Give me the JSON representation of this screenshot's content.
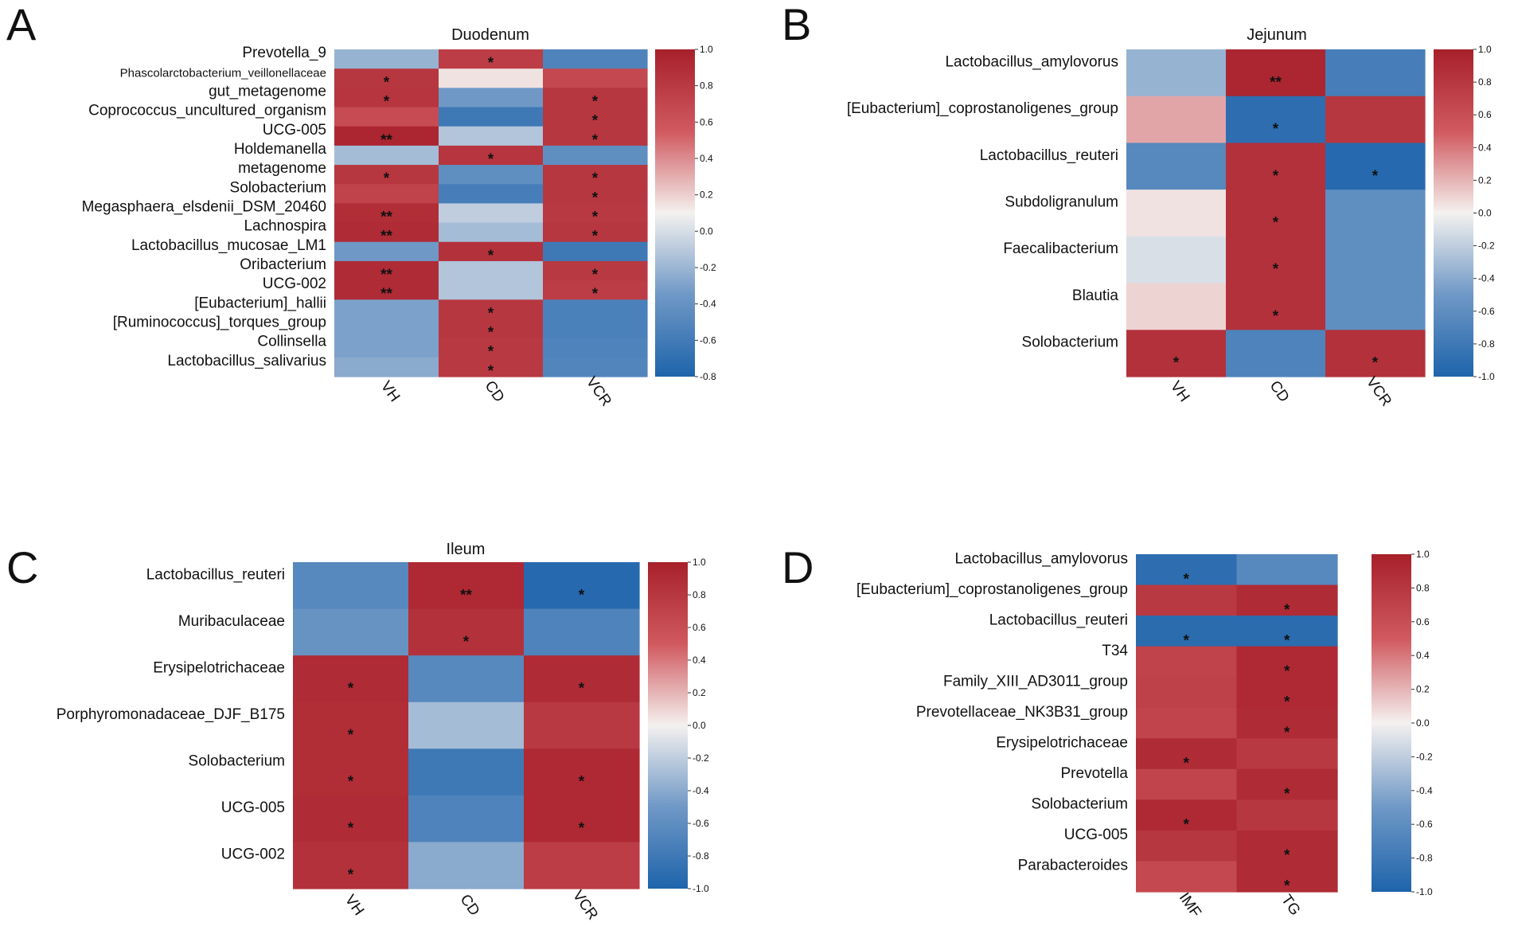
{
  "colors": {
    "high": "#a7202b",
    "mid": "#f4f1ef",
    "low": "#1e64ab",
    "text": "#111111"
  },
  "chart_data": [
    {
      "panel": "A",
      "type": "heatmap",
      "title": "Duodenum",
      "columns": [
        "VH",
        "CD",
        "VCR"
      ],
      "rows": [
        "Prevotella_9",
        "Phascolarctobacterium_veillonellaceae",
        "gut_metagenome",
        "Coprococcus_uncultured_organism",
        "UCG-005",
        "Holdemanella",
        "metagenome",
        "Solobacterium",
        "Megasphaera_elsdenii_DSM_20460",
        "Lachnospira",
        "Lactobacillus_mucosae_LM1",
        "Oribacterium",
        "UCG-002",
        "[Eubacterium]_hallii",
        "[Ruminococcus]_torques_group",
        "Collinsella",
        "Lactobacillus_salivarius"
      ],
      "values": [
        [
          -0.35,
          0.75,
          -0.7
        ],
        [
          0.8,
          0.05,
          0.65
        ],
        [
          0.82,
          -0.5,
          0.8
        ],
        [
          0.62,
          -0.8,
          0.8
        ],
        [
          0.95,
          -0.25,
          0.8
        ],
        [
          -0.3,
          0.82,
          -0.6
        ],
        [
          0.8,
          -0.6,
          0.8
        ],
        [
          0.7,
          -0.75,
          0.8
        ],
        [
          0.88,
          -0.2,
          0.78
        ],
        [
          0.9,
          -0.3,
          0.8
        ],
        [
          -0.5,
          0.85,
          -0.8
        ],
        [
          0.9,
          -0.25,
          0.78
        ],
        [
          0.9,
          -0.25,
          0.75
        ],
        [
          -0.45,
          0.8,
          -0.72
        ],
        [
          -0.45,
          0.8,
          -0.72
        ],
        [
          -0.45,
          0.78,
          -0.7
        ],
        [
          -0.4,
          0.78,
          -0.68
        ]
      ],
      "stars": [
        [
          "",
          "*",
          ""
        ],
        [
          "*",
          "",
          ""
        ],
        [
          "*",
          "",
          "*"
        ],
        [
          "",
          "",
          "*"
        ],
        [
          "**",
          "",
          "*"
        ],
        [
          "",
          "*",
          ""
        ],
        [
          "*",
          "",
          "*"
        ],
        [
          "",
          "",
          "*"
        ],
        [
          "**",
          "",
          "*"
        ],
        [
          "**",
          "",
          "*"
        ],
        [
          "",
          "*",
          ""
        ],
        [
          "**",
          "",
          "*"
        ],
        [
          "**",
          "",
          "*"
        ],
        [
          "",
          "*",
          ""
        ],
        [
          "",
          "*",
          ""
        ],
        [
          "",
          "*",
          ""
        ],
        [
          "",
          "*",
          ""
        ]
      ],
      "colorbar": {
        "range": [
          -0.8,
          1.0
        ],
        "ticks": [
          "1.0",
          "0.8",
          "0.6",
          "0.4",
          "0.2",
          "0.0",
          "-0.2",
          "-0.4",
          "-0.6",
          "-0.8"
        ]
      }
    },
    {
      "panel": "B",
      "type": "heatmap",
      "title": "Jejunum",
      "columns": [
        "VH",
        "CD",
        "VCR"
      ],
      "rows": [
        "Lactobacillus_amylovorus",
        "[Eubacterium]_coprostanoligenes_group",
        "Lactobacillus_reuteri",
        "Subdoligranulum",
        "Faecalibacterium",
        "Blautia",
        "Solobacterium"
      ],
      "values": [
        [
          -0.35,
          0.95,
          -0.75
        ],
        [
          0.25,
          -0.9,
          0.8
        ],
        [
          -0.65,
          0.85,
          -0.95
        ],
        [
          0.05,
          0.85,
          -0.6
        ],
        [
          -0.1,
          0.85,
          -0.6
        ],
        [
          0.1,
          0.85,
          -0.6
        ],
        [
          0.85,
          -0.7,
          0.85
        ]
      ],
      "stars": [
        [
          "",
          "**",
          ""
        ],
        [
          "",
          "*",
          ""
        ],
        [
          "",
          "*",
          "*"
        ],
        [
          "",
          "*",
          ""
        ],
        [
          "",
          "*",
          ""
        ],
        [
          "",
          "*",
          ""
        ],
        [
          "*",
          "",
          "*"
        ]
      ],
      "colorbar": {
        "range": [
          -1.0,
          1.0
        ],
        "ticks": [
          "1.0",
          "0.8",
          "0.6",
          "0.4",
          "0.2",
          "0.0",
          "-0.2",
          "-0.4",
          "-0.6",
          "-0.8",
          "-1.0"
        ]
      }
    },
    {
      "panel": "C",
      "type": "heatmap",
      "title": "Ileum",
      "columns": [
        "VH",
        "CD",
        "VCR"
      ],
      "rows": [
        "Lactobacillus_reuteri",
        "Muribaculaceae",
        "Erysipelotrichaceae",
        "Porphyromonadaceae_DJF_B175",
        "Solobacterium",
        "UCG-005",
        "UCG-002"
      ],
      "values": [
        [
          -0.65,
          0.92,
          -0.95
        ],
        [
          -0.55,
          0.85,
          -0.7
        ],
        [
          0.9,
          -0.65,
          0.9
        ],
        [
          0.88,
          -0.3,
          0.78
        ],
        [
          0.88,
          -0.8,
          0.92
        ],
        [
          0.9,
          -0.7,
          0.92
        ],
        [
          0.85,
          -0.4,
          0.75
        ]
      ],
      "stars": [
        [
          "",
          "**",
          "*"
        ],
        [
          "",
          "*",
          ""
        ],
        [
          "*",
          "",
          "*"
        ],
        [
          "*",
          "",
          ""
        ],
        [
          "*",
          "",
          "*"
        ],
        [
          "*",
          "",
          "*"
        ],
        [
          "*",
          "",
          ""
        ]
      ],
      "colorbar": {
        "range": [
          -1.0,
          1.0
        ],
        "ticks": [
          "1.0",
          "0.8",
          "0.6",
          "0.4",
          "0.2",
          "0.0",
          "-0.2",
          "-0.4",
          "-0.6",
          "-0.8",
          "-1.0"
        ]
      }
    },
    {
      "panel": "D",
      "type": "heatmap",
      "title": "",
      "columns": [
        "IMF",
        "TG"
      ],
      "rows": [
        "Lactobacillus_amylovorus",
        "[Eubacterium]_coprostanoligenes_group",
        "Lactobacillus_reuteri",
        "T34",
        "Family_XIII_AD3011_group",
        "Prevotellaceae_NK3B31_group",
        "Erysipelotrichaceae",
        "Prevotella",
        "Solobacterium",
        "UCG-005",
        "Parabacteroides"
      ],
      "values": [
        [
          -0.9,
          -0.65
        ],
        [
          0.78,
          0.9
        ],
        [
          -0.92,
          -0.92
        ],
        [
          0.7,
          0.92
        ],
        [
          0.72,
          0.92
        ],
        [
          0.68,
          0.9
        ],
        [
          0.9,
          0.78
        ],
        [
          0.68,
          0.9
        ],
        [
          0.92,
          0.8
        ],
        [
          0.8,
          0.9
        ],
        [
          0.65,
          0.9
        ]
      ],
      "stars": [
        [
          "*",
          ""
        ],
        [
          "",
          "*"
        ],
        [
          "*",
          "*"
        ],
        [
          "",
          "*"
        ],
        [
          "",
          "*"
        ],
        [
          "",
          "*"
        ],
        [
          "*",
          ""
        ],
        [
          "",
          "*"
        ],
        [
          "*",
          ""
        ],
        [
          "",
          "*"
        ],
        [
          "",
          "*"
        ]
      ],
      "colorbar": {
        "range": [
          -1.0,
          1.0
        ],
        "ticks": [
          "1.0",
          "0.8",
          "0.6",
          "0.4",
          "0.2",
          "0.0",
          "-0.2",
          "-0.4",
          "-0.6",
          "-0.8",
          "-1.0"
        ]
      }
    }
  ]
}
